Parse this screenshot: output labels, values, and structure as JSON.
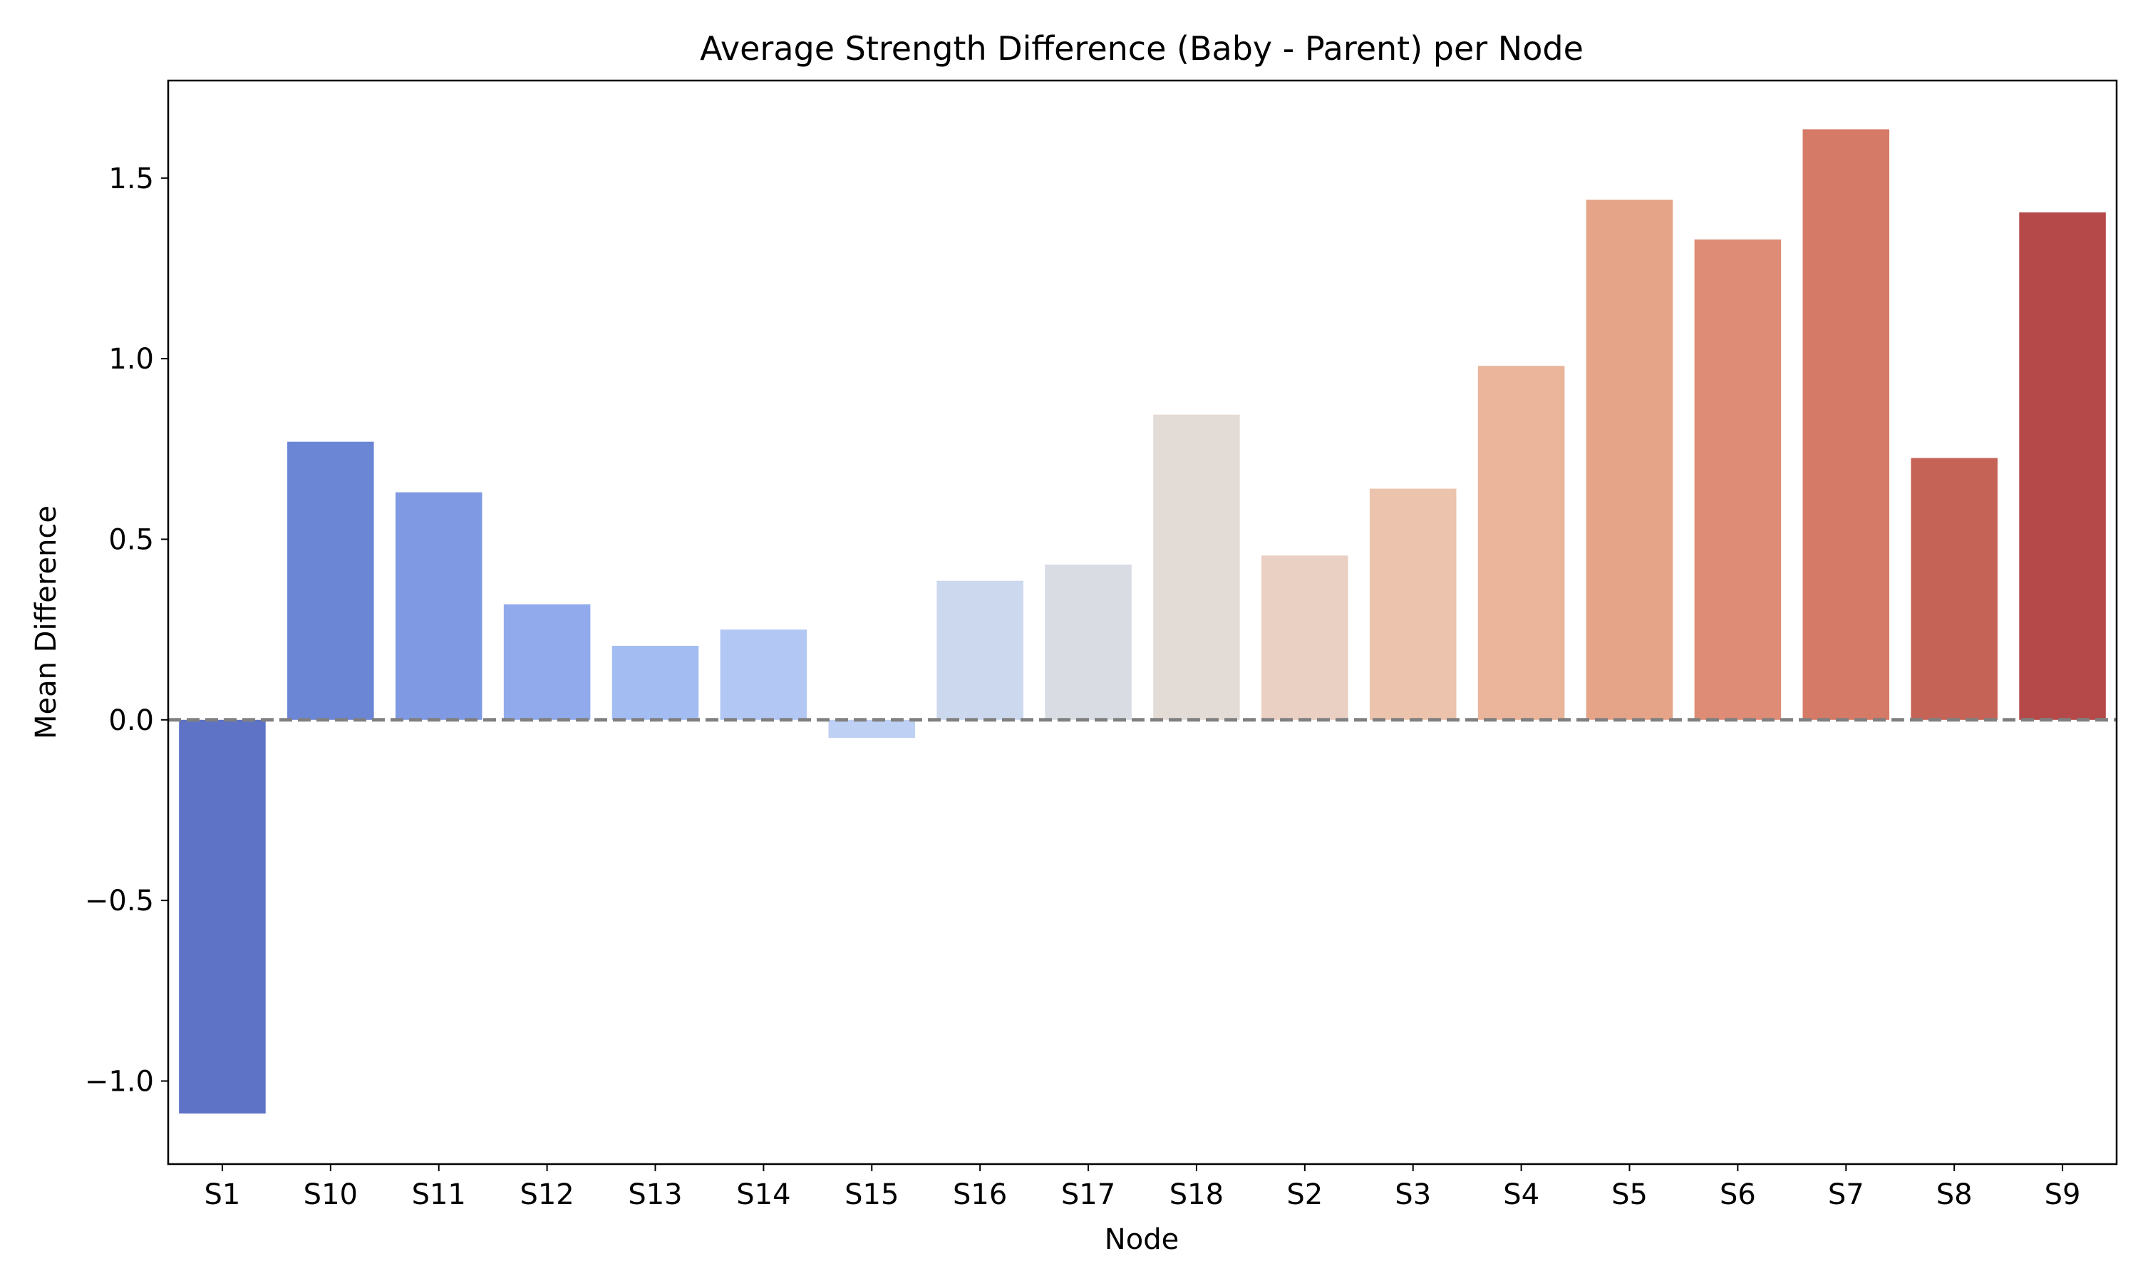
{
  "chart_data": {
    "type": "bar",
    "title": "Average Strength Difference (Baby - Parent) per Node",
    "xlabel": "Node",
    "ylabel": "Mean Difference",
    "ylim": [
      -1.23,
      1.77
    ],
    "yticks": [
      -1.0,
      -0.5,
      0.0,
      0.5,
      1.0,
      1.5
    ],
    "ytick_labels": [
      "−1.0",
      "−0.5",
      "0.0",
      "0.5",
      "1.0",
      "1.5"
    ],
    "grid": false,
    "reference_line": {
      "y": 0.0,
      "style": "dashed",
      "color": "#808080"
    },
    "categories": [
      "S1",
      "S10",
      "S11",
      "S12",
      "S13",
      "S14",
      "S15",
      "S16",
      "S17",
      "S18",
      "S2",
      "S3",
      "S4",
      "S5",
      "S6",
      "S7",
      "S8",
      "S9"
    ],
    "values": [
      -1.09,
      0.77,
      0.63,
      0.32,
      0.205,
      0.25,
      -0.05,
      0.385,
      0.43,
      0.845,
      0.455,
      0.64,
      0.98,
      1.44,
      1.33,
      1.635,
      0.725,
      1.405
    ],
    "colors": [
      "#5e73c6",
      "#6c86d6",
      "#7f99e2",
      "#91aaeb",
      "#a3bdf3",
      "#b2c7f3",
      "#bed0f3",
      "#cbd8ee",
      "#d9dce3",
      "#e3dbd6",
      "#eacfc3",
      "#ecc3ad",
      "#eab59b",
      "#e5a388",
      "#df8c76",
      "#d57a66",
      "#c56356",
      "#b54848"
    ]
  }
}
